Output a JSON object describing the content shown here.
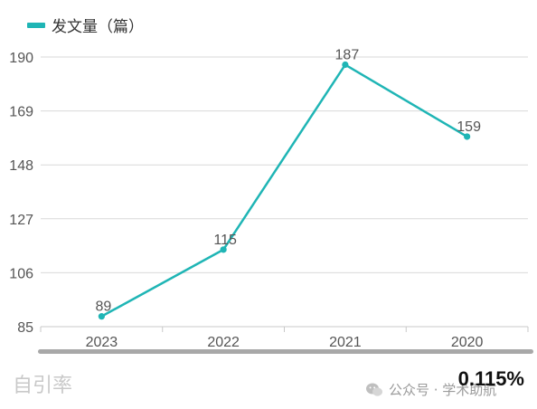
{
  "chart_data": {
    "type": "line",
    "categories": [
      "2023",
      "2022",
      "2021",
      "2020"
    ],
    "series": [
      {
        "name": "发文量（篇）",
        "values": [
          89,
          115,
          187,
          159
        ]
      }
    ],
    "yticks": [
      "190",
      "169",
      "148",
      "127",
      "106",
      "85"
    ],
    "ylim": [
      85,
      190
    ],
    "grid": true,
    "legend_position": "top-left",
    "line_color": "#1fb5b5"
  },
  "footer": {
    "label": "自引率",
    "value": "0.115%",
    "watermark": "公众号 · 学术助航"
  }
}
